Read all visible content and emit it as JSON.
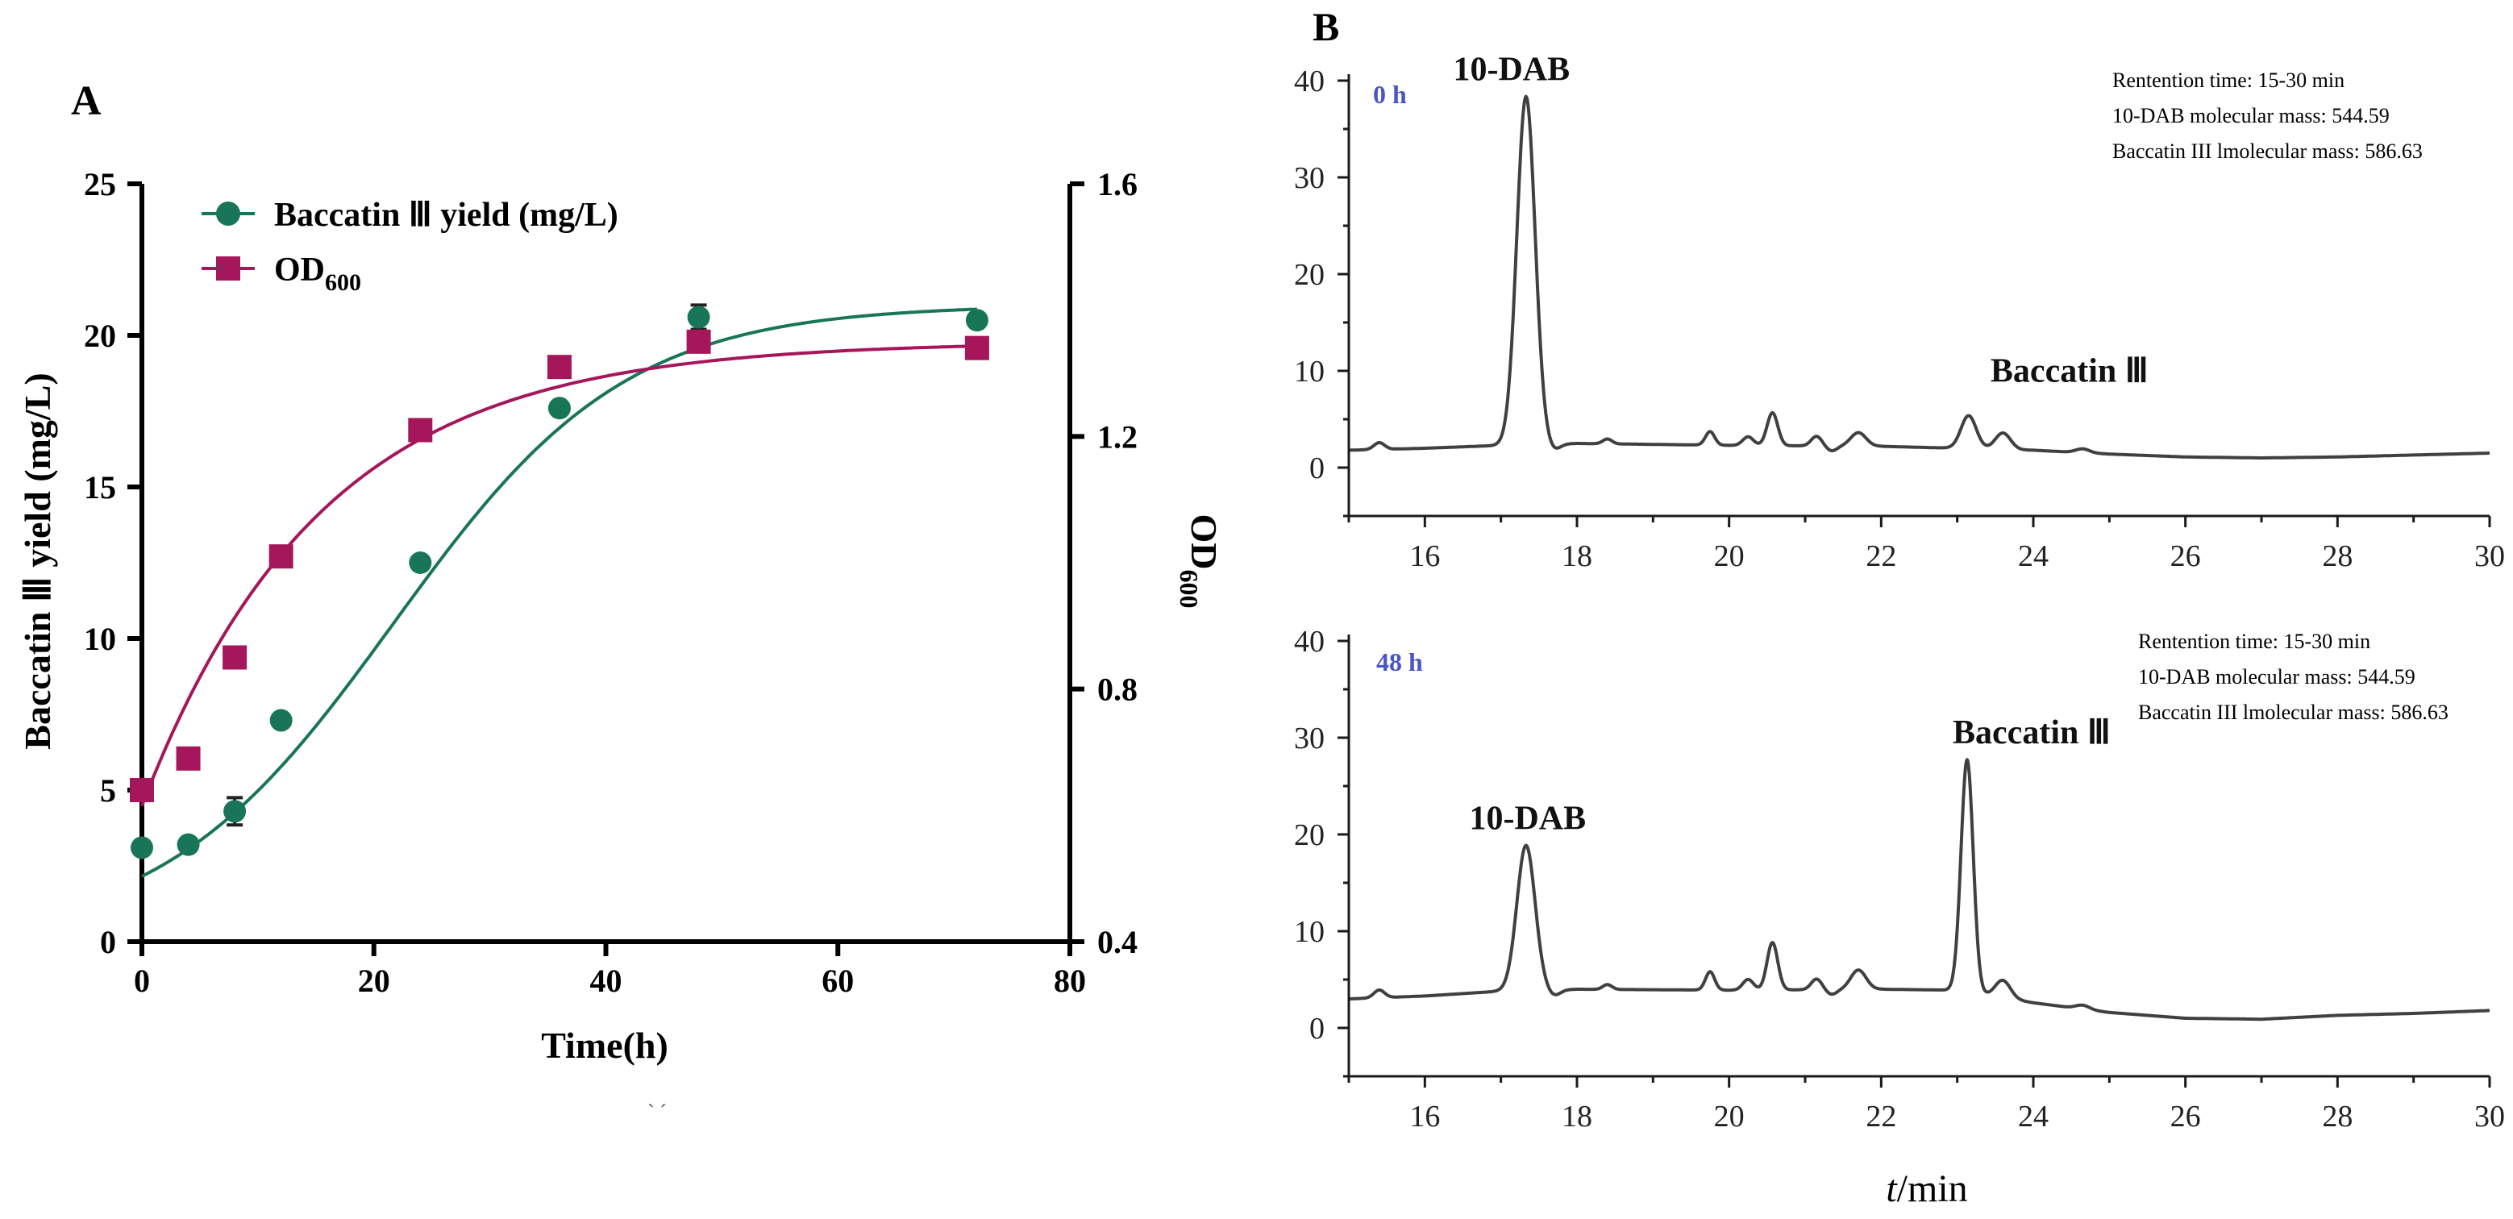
{
  "colors": {
    "baccatin": "#187558",
    "od600": "#A5165A",
    "chromatogram": "#404040",
    "time_label": "#4a56c8"
  },
  "chart_data": [
    {
      "type": "scatter",
      "panel": "A",
      "xlabel": "Time(h)",
      "ylabel_main": "Baccatin Ⅲ yield (mg/L)",
      "ylabel_right": "OD",
      "ylabel_right_sub": "600",
      "xlim": [
        0,
        80
      ],
      "ylim_left": [
        0,
        25
      ],
      "ylim_right": [
        0.4,
        1.6
      ],
      "x_ticks": [
        "0",
        "20",
        "40",
        "60",
        "80"
      ],
      "yleft_ticks": [
        "0",
        "5",
        "10",
        "15",
        "20",
        "25"
      ],
      "yright_ticks": [
        "0.4",
        "0.8",
        "1.2",
        "1.6"
      ],
      "legend": [
        "Baccatin Ⅲ yield (mg/L)",
        "OD600"
      ],
      "legend_od_main": "OD",
      "legend_od_sub": "600",
      "footnote": "` ´",
      "series": [
        {
          "name": "Baccatin Ⅲ yield (mg/L)",
          "axis": "left",
          "marker": "circle",
          "x": [
            0,
            4,
            8,
            12,
            24,
            36,
            48,
            72
          ],
          "y": [
            3.1,
            3.2,
            4.3,
            7.3,
            12.5,
            17.6,
            20.6,
            20.5
          ],
          "err": [
            0,
            0,
            0.45,
            0,
            0,
            0,
            0.4,
            0
          ],
          "fit": {
            "model": "logistic",
            "K": 21.0,
            "A": 8.75,
            "r": 0.1
          }
        },
        {
          "name": "OD600",
          "axis": "right",
          "marker": "square",
          "x": [
            0,
            4,
            8,
            12,
            24,
            36,
            48,
            72
          ],
          "y": [
            0.64,
            0.69,
            0.85,
            1.01,
            1.21,
            1.31,
            1.35,
            1.34
          ],
          "fit": {
            "model": "exponential",
            "Ymax": 1.35,
            "Y0": 0.615,
            "k": 0.065
          }
        }
      ]
    },
    {
      "type": "line",
      "panel": "B",
      "title": "0 h",
      "xlim": [
        15,
        30
      ],
      "ylim": [
        -5,
        40
      ],
      "x_ticks": [
        "16",
        "18",
        "20",
        "22",
        "24",
        "26",
        "28",
        "30"
      ],
      "y_ticks": [
        "0",
        "10",
        "20",
        "30",
        "40"
      ],
      "info": [
        "Rentention time: 15-30 min",
        "10-DAB molecular mass: 544.59",
        "Baccatin III lmolecular mass: 586.63"
      ],
      "baseline": {
        "x": [
          15,
          16,
          17,
          18,
          20,
          22,
          24,
          25,
          26,
          27,
          28,
          29,
          30
        ],
        "y": [
          1.8,
          2.0,
          2.3,
          2.5,
          2.3,
          2.2,
          1.8,
          1.4,
          1.1,
          1.0,
          1.1,
          1.3,
          1.5
        ]
      },
      "peaks": [
        {
          "label": "10-DAB",
          "rt": 17.33,
          "height": 36.0,
          "width": 0.12
        },
        {
          "label": "",
          "rt": 15.4,
          "height": 0.7,
          "width": 0.07
        },
        {
          "label": "",
          "rt": 18.4,
          "height": 0.5,
          "width": 0.06
        },
        {
          "label": "",
          "rt": 19.75,
          "height": 1.4,
          "width": 0.06
        },
        {
          "label": "",
          "rt": 20.25,
          "height": 0.9,
          "width": 0.07
        },
        {
          "label": "",
          "rt": 20.57,
          "height": 3.4,
          "width": 0.07
        },
        {
          "label": "",
          "rt": 21.15,
          "height": 1.0,
          "width": 0.07
        },
        {
          "label": "",
          "rt": 21.7,
          "height": 1.4,
          "width": 0.1
        },
        {
          "label": "Baccatin Ⅲ",
          "rt": 23.15,
          "height": 3.4,
          "width": 0.1
        },
        {
          "label": "",
          "rt": 23.6,
          "height": 1.7,
          "width": 0.1
        },
        {
          "label": "",
          "rt": 24.65,
          "height": 0.4,
          "width": 0.09
        }
      ]
    },
    {
      "type": "line",
      "panel": "B",
      "title": "48 h",
      "xlabel_italic": "t",
      "xlabel_rest": "/min",
      "xlim": [
        15,
        30
      ],
      "ylim": [
        -5,
        40
      ],
      "x_ticks": [
        "16",
        "18",
        "20",
        "22",
        "24",
        "26",
        "28",
        "30"
      ],
      "y_ticks": [
        "0",
        "10",
        "20",
        "30",
        "40"
      ],
      "info": [
        "Rentention time: 15-30 min",
        "10-DAB molecular mass: 544.59",
        "Baccatin III lmolecular mass: 586.63"
      ],
      "baseline": {
        "x": [
          15,
          16,
          17,
          18,
          20,
          22,
          23,
          24,
          25,
          26,
          27,
          28,
          29,
          30
        ],
        "y": [
          3.0,
          3.3,
          3.8,
          4.0,
          3.9,
          4.0,
          3.9,
          2.6,
          1.6,
          1.0,
          0.9,
          1.3,
          1.5,
          1.8
        ]
      },
      "peaks": [
        {
          "label": "10-DAB",
          "rt": 17.33,
          "height": 15.0,
          "width": 0.12
        },
        {
          "label": "",
          "rt": 15.4,
          "height": 0.8,
          "width": 0.07
        },
        {
          "label": "",
          "rt": 18.4,
          "height": 0.5,
          "width": 0.06
        },
        {
          "label": "",
          "rt": 19.75,
          "height": 1.9,
          "width": 0.06
        },
        {
          "label": "",
          "rt": 20.25,
          "height": 1.1,
          "width": 0.07
        },
        {
          "label": "",
          "rt": 20.57,
          "height": 4.9,
          "width": 0.07
        },
        {
          "label": "",
          "rt": 21.15,
          "height": 1.1,
          "width": 0.07
        },
        {
          "label": "",
          "rt": 21.7,
          "height": 2.0,
          "width": 0.1
        },
        {
          "label": "Baccatin Ⅲ",
          "rt": 23.13,
          "height": 24.0,
          "width": 0.08
        },
        {
          "label": "",
          "rt": 23.6,
          "height": 1.8,
          "width": 0.1
        },
        {
          "label": "",
          "rt": 24.65,
          "height": 0.4,
          "width": 0.09
        }
      ]
    }
  ]
}
